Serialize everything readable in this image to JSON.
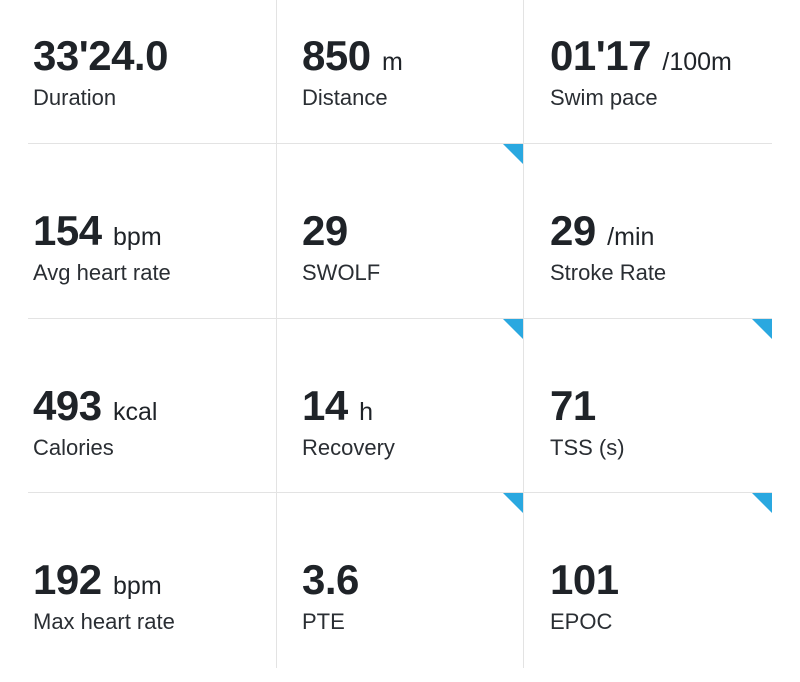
{
  "metrics": [
    {
      "value": "33'24.0",
      "unit": "",
      "label": "Duration",
      "info_corner": false
    },
    {
      "value": "850",
      "unit": "m",
      "label": "Distance",
      "info_corner": false
    },
    {
      "value": "01'17",
      "unit": "/100m",
      "label": "Swim pace",
      "info_corner": false
    },
    {
      "value": "154",
      "unit": "bpm",
      "label": "Avg heart rate",
      "info_corner": false
    },
    {
      "value": "29",
      "unit": "",
      "label": "SWOLF",
      "info_corner": true
    },
    {
      "value": "29",
      "unit": "/min",
      "label": "Stroke Rate",
      "info_corner": false
    },
    {
      "value": "493",
      "unit": "kcal",
      "label": "Calories",
      "info_corner": false
    },
    {
      "value": "14",
      "unit": "h",
      "label": "Recovery",
      "info_corner": true
    },
    {
      "value": "71",
      "unit": "",
      "label": "TSS (s)",
      "info_corner": true
    },
    {
      "value": "192",
      "unit": "bpm",
      "label": "Max heart rate",
      "info_corner": false
    },
    {
      "value": "3.6",
      "unit": "",
      "label": "PTE",
      "info_corner": true
    },
    {
      "value": "101",
      "unit": "",
      "label": "EPOC",
      "info_corner": true
    }
  ],
  "colors": {
    "accent_corner": "#2aa8e0",
    "text": "#1f2328",
    "divider": "#e3e3e3"
  },
  "icons": {
    "info_corner": "info-corner-icon"
  }
}
